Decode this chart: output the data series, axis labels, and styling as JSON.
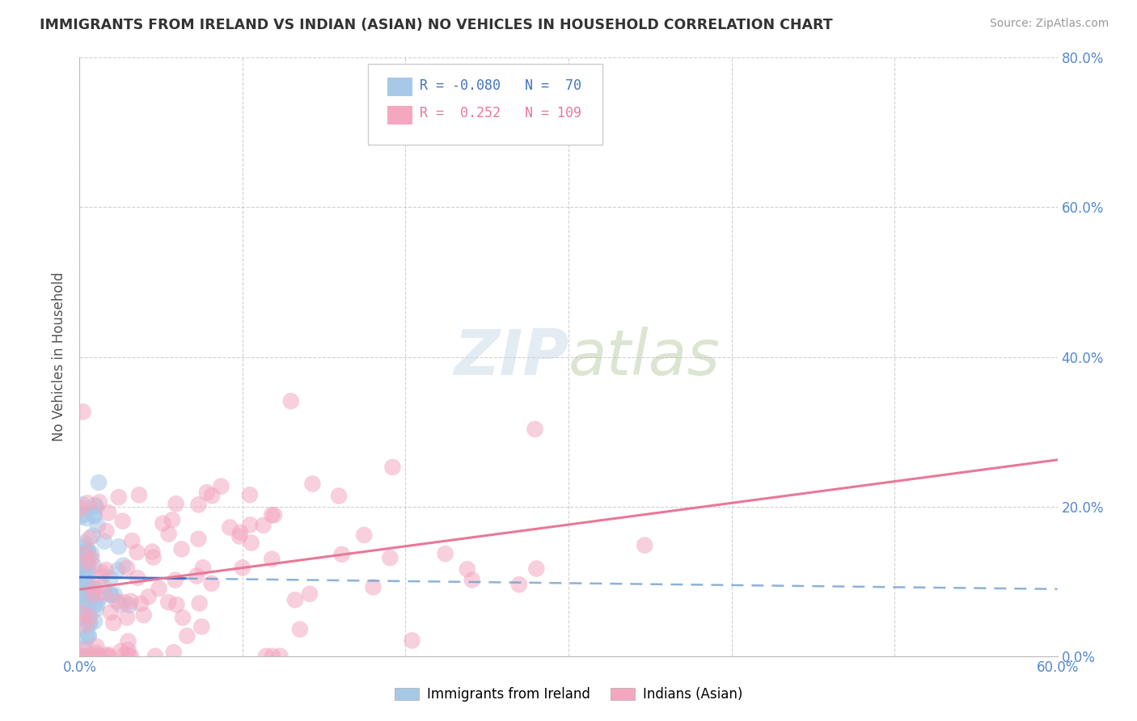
{
  "title": "IMMIGRANTS FROM IRELAND VS INDIAN (ASIAN) NO VEHICLES IN HOUSEHOLD CORRELATION CHART",
  "source": "Source: ZipAtlas.com",
  "ylabel": "No Vehicles in Household",
  "legend_label1": "Immigrants from Ireland",
  "legend_label2": "Indians (Asian)",
  "r1": -0.08,
  "n1": 70,
  "r2": 0.252,
  "n2": 109,
  "xlim": [
    0.0,
    0.6
  ],
  "ylim": [
    0.0,
    0.8
  ],
  "xtick_positions": [
    0.0,
    0.1,
    0.2,
    0.3,
    0.4,
    0.5,
    0.6
  ],
  "xtick_labels_bottom": [
    "0.0%",
    "",
    "",
    "",
    "",
    "",
    "60.0%"
  ],
  "ytick_positions": [
    0.0,
    0.2,
    0.4,
    0.6,
    0.8
  ],
  "ytick_labels_right": [
    "0.0%",
    "20.0%",
    "40.0%",
    "60.0%",
    "80.0%"
  ],
  "color1": "#A8C8E8",
  "color2": "#F4A8C0",
  "line_color1_solid": "#4472C4",
  "line_color1_dash": "#6699CC",
  "line_color2": "#E87898",
  "background": "#FFFFFF",
  "grid_color": "#CCCCCC",
  "watermark_text": "ZIPatlas",
  "watermark_color": "#C8D8E8",
  "title_color": "#333333",
  "source_color": "#999999",
  "tick_color": "#5588CC",
  "ylabel_color": "#555555"
}
